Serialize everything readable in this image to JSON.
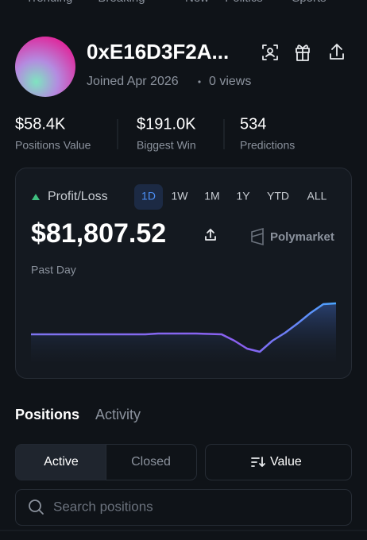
{
  "nav": [
    "Trending",
    "Breaking",
    "New",
    "Politics",
    "Sports"
  ],
  "profile": {
    "name": "0xE16D3F2A...",
    "joined": "Joined Apr 2026",
    "views": "0 views"
  },
  "stats": [
    {
      "value": "$58.4K",
      "label": "Positions Value"
    },
    {
      "value": "$191.0K",
      "label": "Biggest Win"
    },
    {
      "value": "534",
      "label": "Predictions"
    }
  ],
  "pnl": {
    "label": "Profit/Loss",
    "ranges": [
      "1D",
      "1W",
      "1M",
      "1Y",
      "YTD",
      "ALL"
    ],
    "selected_index": 0,
    "amount": "$81,807.52",
    "brand": "Polymarket",
    "period": "Past Day"
  },
  "chart_data": {
    "type": "line",
    "color": "#5b9cf5",
    "values": [
      0,
      0,
      0,
      0,
      0,
      0,
      0,
      0,
      0,
      0,
      1,
      1,
      1,
      1,
      0.5,
      0,
      -8,
      -18,
      -22,
      -8,
      2,
      14,
      27,
      38,
      39
    ]
  },
  "tabs": [
    "Positions",
    "Activity"
  ],
  "filters": [
    "Active",
    "Closed"
  ],
  "sort": "Value",
  "search_placeholder": "Search positions"
}
